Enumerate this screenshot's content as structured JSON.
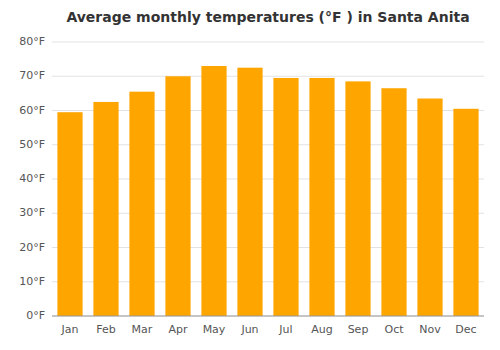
{
  "chart_data": {
    "type": "bar",
    "title": "Average monthly temperatures (°F ) in Santa Anita",
    "categories": [
      "Jan",
      "Feb",
      "Mar",
      "Apr",
      "May",
      "Jun",
      "Jul",
      "Aug",
      "Sep",
      "Oct",
      "Nov",
      "Dec"
    ],
    "values": [
      59.5,
      62.5,
      65.5,
      70.0,
      73.0,
      72.5,
      69.5,
      69.5,
      68.5,
      66.5,
      63.5,
      60.5
    ],
    "color": "#FFA500",
    "ylim": [
      0,
      80
    ],
    "yticks": [
      {
        "value": 0,
        "label": "0°F"
      },
      {
        "value": 10,
        "label": "10°F"
      },
      {
        "value": 20,
        "label": "20°F"
      },
      {
        "value": 30,
        "label": "30°F"
      },
      {
        "value": 40,
        "label": "40°F"
      },
      {
        "value": 50,
        "label": "50°F"
      },
      {
        "value": 60,
        "label": "60°F"
      },
      {
        "value": 70,
        "label": "70°F"
      },
      {
        "value": 80,
        "label": "80°F"
      }
    ],
    "grid": true
  }
}
